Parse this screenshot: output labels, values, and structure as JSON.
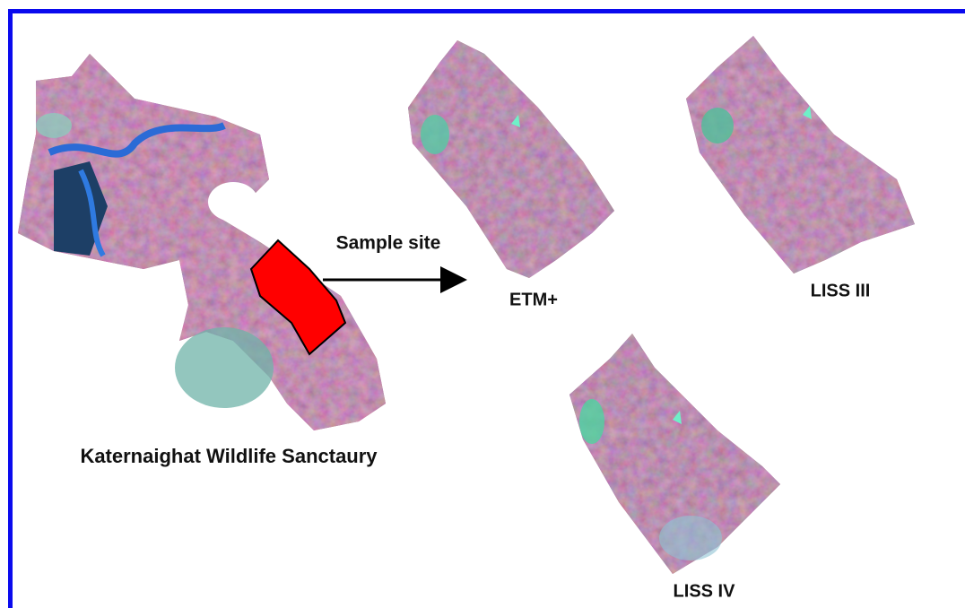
{
  "main_map": {
    "label": "Katernaighat Wildlife Sanctaury"
  },
  "arrow": {
    "label": "Sample site"
  },
  "images": [
    {
      "label": "ETM+"
    },
    {
      "label": "LISS III"
    },
    {
      "label": "LISS IV"
    }
  ]
}
